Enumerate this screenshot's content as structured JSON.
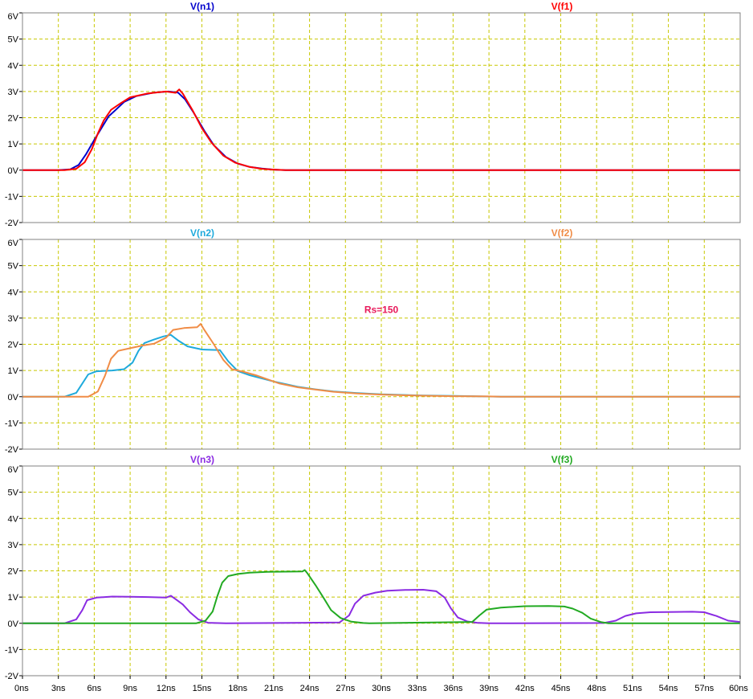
{
  "chart_data": {
    "type": "line",
    "x_unit": "ns",
    "x_range": [
      0,
      60
    ],
    "x_ticks": [
      "0ns",
      "3ns",
      "6ns",
      "9ns",
      "12ns",
      "15ns",
      "18ns",
      "21ns",
      "24ns",
      "27ns",
      "30ns",
      "33ns",
      "36ns",
      "39ns",
      "42ns",
      "45ns",
      "48ns",
      "51ns",
      "54ns",
      "57ns",
      "60ns"
    ],
    "grid": true,
    "panes": [
      {
        "ylim": [
          -2,
          6
        ],
        "y_ticks": [
          "6V",
          "5V",
          "4V",
          "3V",
          "2V",
          "1V",
          "0V",
          "-1V",
          "-2V"
        ],
        "annotations": [],
        "series": [
          {
            "name": "V(n1)",
            "color": "#0000cc",
            "points": [
              [
                0,
                0
              ],
              [
                3,
                0
              ],
              [
                4,
                0.03
              ],
              [
                4.7,
                0.2
              ],
              [
                5.3,
                0.6
              ],
              [
                6,
                1.15
              ],
              [
                6.6,
                1.6
              ],
              [
                7.2,
                2.05
              ],
              [
                7.8,
                2.3
              ],
              [
                8.5,
                2.6
              ],
              [
                9.5,
                2.82
              ],
              [
                11,
                2.96
              ],
              [
                12.2,
                3.0
              ],
              [
                13,
                2.96
              ],
              [
                13.6,
                2.7
              ],
              [
                14.3,
                2.2
              ],
              [
                15.2,
                1.5
              ],
              [
                16,
                0.95
              ],
              [
                17,
                0.5
              ],
              [
                18,
                0.25
              ],
              [
                19,
                0.12
              ],
              [
                20,
                0.06
              ],
              [
                21,
                0.02
              ],
              [
                22,
                0
              ],
              [
                60,
                0
              ]
            ]
          },
          {
            "name": "V(f1)",
            "color": "#ff0000",
            "points": [
              [
                0,
                0
              ],
              [
                3.5,
                0
              ],
              [
                4.5,
                0.05
              ],
              [
                5.2,
                0.3
              ],
              [
                5.8,
                0.8
              ],
              [
                6.3,
                1.4
              ],
              [
                6.8,
                1.9
              ],
              [
                7.4,
                2.3
              ],
              [
                8.2,
                2.55
              ],
              [
                9,
                2.78
              ],
              [
                10.5,
                2.93
              ],
              [
                12,
                3.0
              ],
              [
                12.8,
                2.95
              ],
              [
                13.1,
                3.08
              ],
              [
                13.4,
                2.92
              ],
              [
                14.2,
                2.3
              ],
              [
                15,
                1.6
              ],
              [
                15.8,
                1.05
              ],
              [
                16.8,
                0.55
              ],
              [
                17.8,
                0.28
              ],
              [
                19,
                0.12
              ],
              [
                20,
                0.05
              ],
              [
                21,
                0.02
              ],
              [
                22,
                0
              ],
              [
                60,
                0
              ]
            ]
          }
        ]
      },
      {
        "ylim": [
          -2,
          6
        ],
        "y_ticks": [
          "6V",
          "5V",
          "4V",
          "3V",
          "2V",
          "1V",
          "0V",
          "-1V",
          "-2V"
        ],
        "annotations": [
          {
            "text": "Rs=150",
            "x": 30,
            "y": 3.2,
            "color": "#e8185a"
          }
        ],
        "series": [
          {
            "name": "V(n2)",
            "color": "#1eaadc",
            "points": [
              [
                0,
                0
              ],
              [
                3.5,
                0
              ],
              [
                4.5,
                0.15
              ],
              [
                5,
                0.5
              ],
              [
                5.5,
                0.85
              ],
              [
                6.2,
                0.97
              ],
              [
                7.5,
                1.0
              ],
              [
                8.5,
                1.05
              ],
              [
                9.2,
                1.3
              ],
              [
                9.7,
                1.75
              ],
              [
                10.2,
                2.05
              ],
              [
                11,
                2.18
              ],
              [
                11.8,
                2.3
              ],
              [
                12.4,
                2.36
              ],
              [
                13,
                2.15
              ],
              [
                13.8,
                1.92
              ],
              [
                15,
                1.8
              ],
              [
                16.5,
                1.78
              ],
              [
                17.2,
                1.35
              ],
              [
                18,
                0.98
              ],
              [
                19,
                0.82
              ],
              [
                20,
                0.7
              ],
              [
                21,
                0.58
              ],
              [
                22,
                0.48
              ],
              [
                23,
                0.38
              ],
              [
                24.5,
                0.28
              ],
              [
                26,
                0.2
              ],
              [
                28,
                0.14
              ],
              [
                30,
                0.09
              ],
              [
                33,
                0.05
              ],
              [
                36,
                0.03
              ],
              [
                38.5,
                0.01
              ],
              [
                40,
                0
              ],
              [
                60,
                0
              ]
            ]
          },
          {
            "name": "V(f2)",
            "color": "#f08c46",
            "points": [
              [
                0,
                0
              ],
              [
                5.5,
                0
              ],
              [
                6.3,
                0.2
              ],
              [
                6.9,
                0.8
              ],
              [
                7.4,
                1.45
              ],
              [
                8,
                1.75
              ],
              [
                9,
                1.85
              ],
              [
                10,
                1.95
              ],
              [
                11,
                2.02
              ],
              [
                12,
                2.25
              ],
              [
                12.6,
                2.55
              ],
              [
                13.5,
                2.62
              ],
              [
                14.6,
                2.65
              ],
              [
                14.9,
                2.78
              ],
              [
                15.2,
                2.55
              ],
              [
                16,
                2.0
              ],
              [
                16.8,
                1.4
              ],
              [
                17.5,
                1.05
              ],
              [
                18.5,
                0.95
              ],
              [
                19.5,
                0.82
              ],
              [
                20.5,
                0.66
              ],
              [
                21.5,
                0.5
              ],
              [
                23,
                0.36
              ],
              [
                24.5,
                0.27
              ],
              [
                26,
                0.19
              ],
              [
                28,
                0.12
              ],
              [
                30,
                0.08
              ],
              [
                33,
                0.04
              ],
              [
                36,
                0.02
              ],
              [
                39,
                0.01
              ],
              [
                40,
                0
              ],
              [
                60,
                0
              ]
            ]
          }
        ]
      },
      {
        "ylim": [
          -2,
          6
        ],
        "y_ticks": [
          "6V",
          "5V",
          "4V",
          "3V",
          "2V",
          "1V",
          "0V",
          "-1V",
          "-2V"
        ],
        "annotations": [],
        "series": [
          {
            "name": "V(n3)",
            "color": "#8a2be2",
            "points": [
              [
                0,
                0
              ],
              [
                3.5,
                0
              ],
              [
                4.5,
                0.15
              ],
              [
                5,
                0.5
              ],
              [
                5.4,
                0.88
              ],
              [
                6.2,
                0.98
              ],
              [
                7.5,
                1.02
              ],
              [
                9,
                1.01
              ],
              [
                10.5,
                1.0
              ],
              [
                12,
                0.98
              ],
              [
                12.4,
                1.05
              ],
              [
                12.8,
                0.92
              ],
              [
                13.4,
                0.72
              ],
              [
                14,
                0.42
              ],
              [
                14.7,
                0.15
              ],
              [
                15.5,
                0.02
              ],
              [
                17,
                0
              ],
              [
                26.5,
                0.03
              ],
              [
                27.3,
                0.3
              ],
              [
                27.8,
                0.75
              ],
              [
                28.5,
                1.05
              ],
              [
                29.5,
                1.17
              ],
              [
                30.5,
                1.24
              ],
              [
                32,
                1.27
              ],
              [
                33.5,
                1.28
              ],
              [
                34.6,
                1.22
              ],
              [
                35.3,
                0.98
              ],
              [
                35.8,
                0.58
              ],
              [
                36.4,
                0.22
              ],
              [
                37.2,
                0.07
              ],
              [
                38,
                0.02
              ],
              [
                39,
                0
              ],
              [
                48.6,
                0.01
              ],
              [
                49.6,
                0.1
              ],
              [
                50.4,
                0.28
              ],
              [
                51.3,
                0.38
              ],
              [
                52.5,
                0.42
              ],
              [
                54,
                0.43
              ],
              [
                56,
                0.44
              ],
              [
                57,
                0.42
              ],
              [
                58,
                0.28
              ],
              [
                59,
                0.1
              ],
              [
                60,
                0.05
              ]
            ]
          },
          {
            "name": "V(f3)",
            "color": "#22aa22",
            "points": [
              [
                0,
                0
              ],
              [
                14.5,
                0
              ],
              [
                15.3,
                0.1
              ],
              [
                15.9,
                0.45
              ],
              [
                16.3,
                1.05
              ],
              [
                16.7,
                1.55
              ],
              [
                17.2,
                1.8
              ],
              [
                18,
                1.88
              ],
              [
                19,
                1.93
              ],
              [
                20.5,
                1.96
              ],
              [
                22,
                1.97
              ],
              [
                23.4,
                1.98
              ],
              [
                23.6,
                2.03
              ],
              [
                23.8,
                1.92
              ],
              [
                24.5,
                1.45
              ],
              [
                25.2,
                0.95
              ],
              [
                25.8,
                0.5
              ],
              [
                26.6,
                0.2
              ],
              [
                27.5,
                0.06
              ],
              [
                28.5,
                0.01
              ],
              [
                29,
                0
              ],
              [
                37.6,
                0.05
              ],
              [
                38.2,
                0.3
              ],
              [
                38.8,
                0.52
              ],
              [
                40,
                0.6
              ],
              [
                42,
                0.65
              ],
              [
                44,
                0.66
              ],
              [
                45.3,
                0.64
              ],
              [
                46,
                0.56
              ],
              [
                46.8,
                0.4
              ],
              [
                47.5,
                0.18
              ],
              [
                48.4,
                0.04
              ],
              [
                49,
                0
              ],
              [
                60,
                0
              ]
            ]
          }
        ]
      }
    ]
  },
  "colors": {
    "background": "#ffffff",
    "frame": "#808080",
    "grid": "#c8c800",
    "axis_text": "#000000"
  }
}
